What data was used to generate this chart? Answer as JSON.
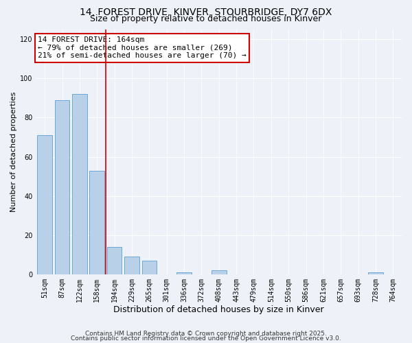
{
  "title": "14, FOREST DRIVE, KINVER, STOURBRIDGE, DY7 6DX",
  "subtitle": "Size of property relative to detached houses in Kinver",
  "xlabel": "Distribution of detached houses by size in Kinver",
  "ylabel": "Number of detached properties",
  "bar_labels": [
    "51sqm",
    "87sqm",
    "122sqm",
    "158sqm",
    "194sqm",
    "229sqm",
    "265sqm",
    "301sqm",
    "336sqm",
    "372sqm",
    "408sqm",
    "443sqm",
    "479sqm",
    "514sqm",
    "550sqm",
    "586sqm",
    "621sqm",
    "657sqm",
    "693sqm",
    "728sqm",
    "764sqm"
  ],
  "bar_values": [
    71,
    89,
    92,
    53,
    14,
    9,
    7,
    0,
    1,
    0,
    2,
    0,
    0,
    0,
    0,
    0,
    0,
    0,
    0,
    1,
    0
  ],
  "bar_color": "#b8d0e8",
  "bar_edge_color": "#5a9fd4",
  "property_line_color": "#cc0000",
  "annotation_line1": "14 FOREST DRIVE: 164sqm",
  "annotation_line2": "← 79% of detached houses are smaller (269)",
  "annotation_line3": "21% of semi-detached houses are larger (70) →",
  "annotation_box_edge_color": "#cc0000",
  "ylim": [
    0,
    125
  ],
  "yticks": [
    0,
    20,
    40,
    60,
    80,
    100,
    120
  ],
  "background_color": "#eef2f8",
  "grid_color": "#ffffff",
  "footer_line1": "Contains HM Land Registry data © Crown copyright and database right 2025.",
  "footer_line2": "Contains public sector information licensed under the Open Government Licence v3.0.",
  "title_fontsize": 10,
  "subtitle_fontsize": 9,
  "xlabel_fontsize": 9,
  "ylabel_fontsize": 8,
  "tick_fontsize": 7,
  "annotation_fontsize": 8,
  "footer_fontsize": 6.5
}
